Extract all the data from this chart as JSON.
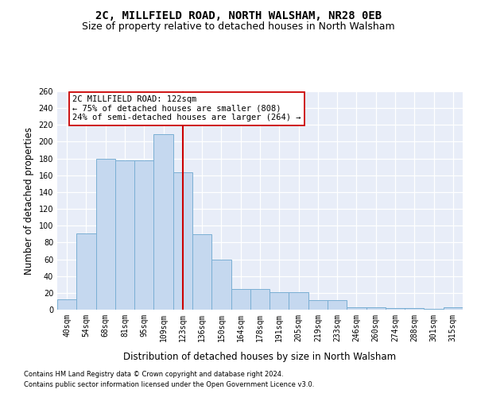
{
  "title": "2C, MILLFIELD ROAD, NORTH WALSHAM, NR28 0EB",
  "subtitle": "Size of property relative to detached houses in North Walsham",
  "xlabel": "Distribution of detached houses by size in North Walsham",
  "ylabel": "Number of detached properties",
  "categories": [
    "40sqm",
    "54sqm",
    "68sqm",
    "81sqm",
    "95sqm",
    "109sqm",
    "123sqm",
    "136sqm",
    "150sqm",
    "164sqm",
    "178sqm",
    "191sqm",
    "205sqm",
    "219sqm",
    "233sqm",
    "246sqm",
    "260sqm",
    "274sqm",
    "288sqm",
    "301sqm",
    "315sqm"
  ],
  "values": [
    12,
    91,
    180,
    178,
    178,
    209,
    164,
    90,
    60,
    25,
    25,
    21,
    21,
    11,
    11,
    3,
    3,
    2,
    2,
    1,
    3
  ],
  "bar_color": "#c5d8ef",
  "bar_edge_color": "#7aafd4",
  "vline_index": 6,
  "vline_color": "#cc0000",
  "annotation_line1": "2C MILLFIELD ROAD: 122sqm",
  "annotation_line2": "← 75% of detached houses are smaller (808)",
  "annotation_line3": "24% of semi-detached houses are larger (264) →",
  "annotation_box_facecolor": "#ffffff",
  "annotation_box_edgecolor": "#cc0000",
  "ylim_max": 260,
  "yticks": [
    0,
    20,
    40,
    60,
    80,
    100,
    120,
    140,
    160,
    180,
    200,
    220,
    240,
    260
  ],
  "footnote1": "Contains HM Land Registry data © Crown copyright and database right 2024.",
  "footnote2": "Contains public sector information licensed under the Open Government Licence v3.0.",
  "bg_color": "#e8edf8",
  "grid_color": "#d0d8e8",
  "title_fontsize": 10,
  "subtitle_fontsize": 9,
  "xlabel_fontsize": 8.5,
  "ylabel_fontsize": 8.5,
  "tick_fontsize": 7,
  "footnote_fontsize": 6,
  "annot_fontsize": 7.5
}
